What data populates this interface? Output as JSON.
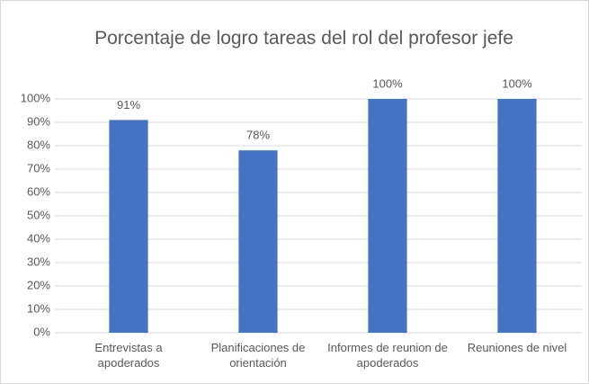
{
  "chart_data": {
    "type": "bar",
    "title": "Porcentaje de logro tareas del rol del profesor jefe",
    "categories": [
      "Entrevistas a apoderados",
      "Planificaciones de orientación",
      "Informes de reunion de apoderados",
      "Reuniones de nivel"
    ],
    "values": [
      91,
      78,
      100,
      100
    ],
    "value_labels": [
      "91%",
      "78%",
      "100%",
      "100%"
    ],
    "color": "#4472c4",
    "ylim": [
      0,
      100
    ],
    "yticks": [
      {
        "value": 0,
        "label": "0%"
      },
      {
        "value": 10,
        "label": "10%"
      },
      {
        "value": 20,
        "label": "20%"
      },
      {
        "value": 30,
        "label": "30%"
      },
      {
        "value": 40,
        "label": "40%"
      },
      {
        "value": 50,
        "label": "50%"
      },
      {
        "value": 60,
        "label": "60%"
      },
      {
        "value": 70,
        "label": "70%"
      },
      {
        "value": 80,
        "label": "80%"
      },
      {
        "value": 90,
        "label": "90%"
      },
      {
        "value": 100,
        "label": "100%"
      }
    ],
    "grid": true
  }
}
